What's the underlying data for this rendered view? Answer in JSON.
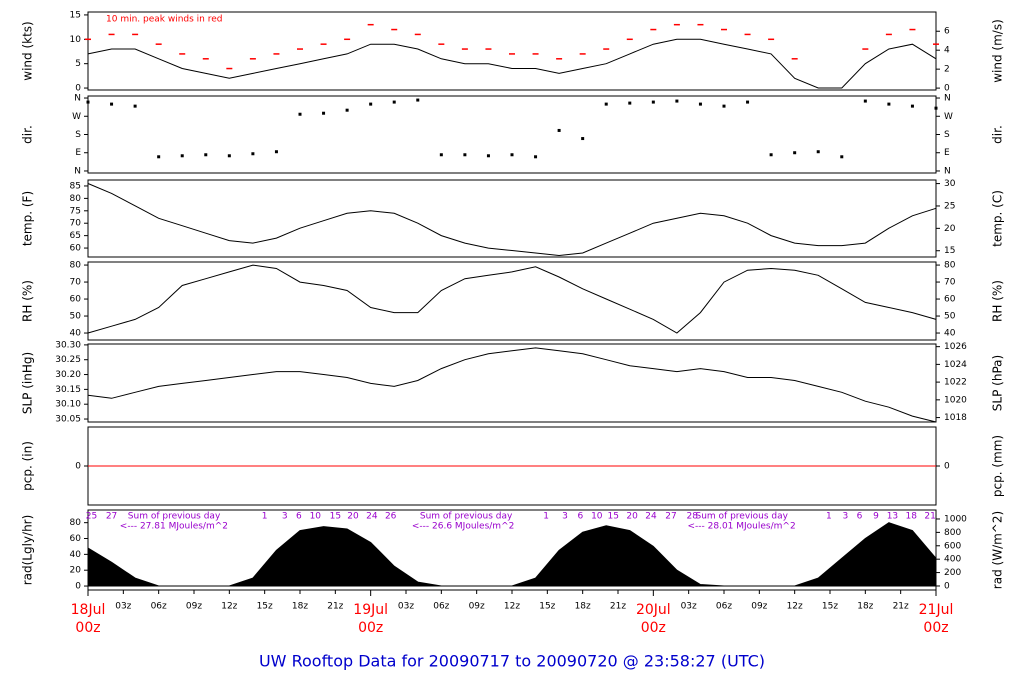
{
  "title": "UW Rooftop Data for 20090717  to  20090720 @ 23:58:27  (UTC)",
  "chart_data": [
    {
      "type": "line",
      "ylabel": "wind (kts)",
      "y2label": "wind (m/s)",
      "annotation": "10 min. peak winds in red",
      "xlim": [
        0,
        72
      ],
      "ylim": [
        -0.4,
        15.6
      ],
      "yticks": [
        0,
        5,
        10,
        15
      ],
      "y2lim": [
        -0.2,
        8.03
      ],
      "y2ticks": [
        0,
        2,
        4,
        6
      ],
      "x": [
        0,
        2,
        4,
        6,
        8,
        10,
        12,
        14,
        16,
        18,
        20,
        22,
        24,
        26,
        28,
        30,
        32,
        34,
        36,
        38,
        40,
        42,
        44,
        46,
        48,
        50,
        52,
        54,
        56,
        58,
        60,
        62,
        64,
        66,
        68,
        70,
        72
      ],
      "series": [
        {
          "color": "#000000",
          "values": [
            7,
            8,
            8,
            6,
            4,
            3,
            2,
            3,
            4,
            5,
            6,
            7,
            9,
            9,
            8,
            6,
            5,
            5,
            4,
            4,
            3,
            4,
            5,
            7,
            9,
            10,
            10,
            9,
            8,
            7,
            2,
            0,
            0,
            5,
            8,
            9,
            6
          ]
        },
        {
          "color": "#ff0000",
          "style": "points",
          "values": [
            10,
            11,
            11,
            9,
            7,
            6,
            4,
            6,
            7,
            8,
            9,
            10,
            13,
            12,
            11,
            9,
            8,
            8,
            7,
            7,
            6,
            7,
            8,
            10,
            12,
            13,
            13,
            12,
            11,
            10,
            6,
            null,
            null,
            8,
            11,
            12,
            9
          ]
        }
      ]
    },
    {
      "type": "scatter",
      "ylabel": "dir.",
      "y2label": "dir.",
      "xlim": [
        0,
        72
      ],
      "ylim": [
        -10,
        370
      ],
      "yticks": [
        {
          "value": 0,
          "label": "N"
        },
        {
          "value": 90,
          "label": "E"
        },
        {
          "value": 180,
          "label": "S"
        },
        {
          "value": 270,
          "label": "W"
        },
        {
          "value": 360,
          "label": "N"
        }
      ],
      "y2lim": [
        -10,
        370
      ],
      "y2ticks": [
        {
          "value": 0,
          "label": "N"
        },
        {
          "value": 90,
          "label": "E"
        },
        {
          "value": 180,
          "label": "S"
        },
        {
          "value": 270,
          "label": "W"
        },
        {
          "value": 360,
          "label": "N"
        }
      ],
      "x": [
        0,
        2,
        4,
        6,
        8,
        10,
        12,
        14,
        16,
        18,
        20,
        22,
        24,
        26,
        28,
        30,
        32,
        34,
        36,
        38,
        40,
        42,
        44,
        46,
        48,
        50,
        52,
        54,
        56,
        58,
        60,
        62,
        64,
        66,
        68,
        70,
        72
      ],
      "series": [
        {
          "color": "#000000",
          "values": [
            340,
            330,
            320,
            70,
            75,
            80,
            75,
            85,
            95,
            280,
            285,
            300,
            330,
            340,
            350,
            80,
            80,
            75,
            80,
            70,
            200,
            160,
            330,
            335,
            340,
            345,
            330,
            320,
            340,
            80,
            90,
            95,
            70,
            345,
            330,
            320,
            310
          ]
        }
      ]
    },
    {
      "type": "line",
      "ylabel": "temp. (F)",
      "y2label": "temp. (C)",
      "xlim": [
        0,
        72
      ],
      "ylim": [
        56.4,
        87.4
      ],
      "yticks": [
        60,
        65,
        70,
        75,
        80,
        85
      ],
      "y2lim": [
        13.6,
        30.8
      ],
      "y2ticks": [
        15,
        20,
        25,
        30
      ],
      "x": [
        0,
        2,
        4,
        6,
        8,
        10,
        12,
        14,
        16,
        18,
        20,
        22,
        24,
        26,
        28,
        30,
        32,
        34,
        36,
        38,
        40,
        42,
        44,
        46,
        48,
        50,
        52,
        54,
        56,
        58,
        60,
        62,
        64,
        66,
        68,
        70,
        72
      ],
      "series": [
        {
          "color": "#000000",
          "values": [
            86,
            82,
            77,
            72,
            69,
            66,
            63,
            62,
            64,
            68,
            71,
            74,
            75,
            74,
            70,
            65,
            62,
            60,
            59,
            58,
            57,
            58,
            62,
            66,
            70,
            72,
            74,
            73,
            70,
            65,
            62,
            61,
            61,
            62,
            68,
            73,
            76
          ]
        }
      ]
    },
    {
      "type": "line",
      "ylabel": "RH (%)",
      "y2label": "RH (%)",
      "xlim": [
        0,
        72
      ],
      "ylim": [
        35.9,
        81.8
      ],
      "yticks": [
        40,
        50,
        60,
        70,
        80
      ],
      "y2lim": [
        35.9,
        81.8
      ],
      "y2ticks": [
        40,
        50,
        60,
        70,
        80
      ],
      "x": [
        0,
        2,
        4,
        6,
        8,
        10,
        12,
        14,
        16,
        18,
        20,
        22,
        24,
        26,
        28,
        30,
        32,
        34,
        36,
        38,
        40,
        42,
        44,
        46,
        48,
        50,
        52,
        54,
        56,
        58,
        60,
        62,
        64,
        66,
        68,
        70,
        72
      ],
      "series": [
        {
          "color": "#000000",
          "values": [
            40,
            44,
            48,
            55,
            68,
            72,
            76,
            80,
            78,
            70,
            68,
            65,
            55,
            52,
            52,
            65,
            72,
            74,
            76,
            79,
            73,
            66,
            60,
            54,
            48,
            40,
            52,
            70,
            77,
            78,
            77,
            74,
            66,
            58,
            55,
            52,
            48
          ]
        }
      ]
    },
    {
      "type": "line",
      "ylabel": "SLP (inHg)",
      "y2label": "SLP (hPa)",
      "xlim": [
        0,
        72
      ],
      "ylim": [
        30.04,
        30.303
      ],
      "yticks": [
        30.05,
        {
          "value": 30.1,
          "label": "30.10"
        },
        30.15,
        {
          "value": 30.2,
          "label": "30.20"
        },
        30.25,
        {
          "value": 30.3,
          "label": "30.30"
        }
      ],
      "y2lim": [
        1017.5,
        1026.3
      ],
      "y2ticks": [
        1018,
        1020,
        1022,
        1024,
        1026
      ],
      "x": [
        0,
        2,
        4,
        6,
        8,
        10,
        12,
        14,
        16,
        18,
        20,
        22,
        24,
        26,
        28,
        30,
        32,
        34,
        36,
        38,
        40,
        42,
        44,
        46,
        48,
        50,
        52,
        54,
        56,
        58,
        60,
        62,
        64,
        66,
        68,
        70,
        72
      ],
      "series": [
        {
          "color": "#000000",
          "values": [
            30.13,
            30.12,
            30.14,
            30.16,
            30.17,
            30.18,
            30.19,
            30.2,
            30.21,
            30.21,
            30.2,
            30.19,
            30.17,
            30.16,
            30.18,
            30.22,
            30.25,
            30.27,
            30.28,
            30.29,
            30.28,
            30.27,
            30.25,
            30.23,
            30.22,
            30.21,
            30.22,
            30.21,
            30.19,
            30.19,
            30.18,
            30.16,
            30.14,
            30.11,
            30.09,
            30.06,
            30.04
          ]
        }
      ]
    },
    {
      "type": "line",
      "ylabel": "pcp. (in)",
      "y2label": "pcp. (mm)",
      "xlim": [
        0,
        72
      ],
      "ylim": [
        -1,
        1
      ],
      "yticks": [
        0
      ],
      "y2lim": [
        -1,
        1
      ],
      "y2ticks": [
        0
      ],
      "x": [
        0,
        72
      ],
      "series": [
        {
          "color": "#ff0000",
          "values": [
            0,
            0
          ]
        }
      ]
    },
    {
      "type": "area",
      "ylabel": "rad(Lgly/hr)",
      "y2label": "rad (W/m^2)",
      "xlim": [
        0,
        72
      ],
      "ylim": [
        -5,
        96
      ],
      "yticks": [
        0,
        20,
        40,
        60,
        80
      ],
      "y2lim": [
        -60,
        1134
      ],
      "y2ticks": [
        0,
        200,
        400,
        600,
        800,
        1000
      ],
      "x": [
        0,
        2,
        4,
        6,
        8,
        10,
        12,
        14,
        16,
        18,
        20,
        22,
        24,
        26,
        28,
        30,
        32,
        34,
        36,
        38,
        40,
        42,
        44,
        46,
        48,
        50,
        52,
        54,
        56,
        58,
        60,
        62,
        64,
        66,
        68,
        70,
        72
      ],
      "series": [
        {
          "color": "#000000",
          "values": [
            48,
            30,
            10,
            0,
            0,
            0,
            0,
            10,
            45,
            70,
            75,
            72,
            55,
            25,
            5,
            0,
            0,
            0,
            0,
            10,
            45,
            68,
            76,
            70,
            50,
            20,
            2,
            0,
            0,
            0,
            0,
            10,
            35,
            60,
            80,
            70,
            35
          ]
        }
      ],
      "label_color": "#9900cc",
      "hour_labels": [
        {
          "value": 0.3,
          "label": "25"
        },
        {
          "value": 2.0,
          "label": "27"
        },
        {
          "value": 15.0,
          "label": "1"
        },
        {
          "value": 16.7,
          "label": "3"
        },
        {
          "value": 17.9,
          "label": "6"
        },
        {
          "value": 19.3,
          "label": "10"
        },
        {
          "value": 21.0,
          "label": "15"
        },
        {
          "value": 22.5,
          "label": "20"
        },
        {
          "value": 24.1,
          "label": "24"
        },
        {
          "value": 25.7,
          "label": "26"
        },
        {
          "value": 38.9,
          "label": "1"
        },
        {
          "value": 40.5,
          "label": "3"
        },
        {
          "value": 41.8,
          "label": "6"
        },
        {
          "value": 43.2,
          "label": "10"
        },
        {
          "value": 44.6,
          "label": "15"
        },
        {
          "value": 46.2,
          "label": "20"
        },
        {
          "value": 47.8,
          "label": "24"
        },
        {
          "value": 49.5,
          "label": "27"
        },
        {
          "value": 51.3,
          "label": "28"
        },
        {
          "value": 62.9,
          "label": "1"
        },
        {
          "value": 64.3,
          "label": "3"
        },
        {
          "value": 65.5,
          "label": "6"
        },
        {
          "value": 66.9,
          "label": "9"
        },
        {
          "value": 68.3,
          "label": "13"
        },
        {
          "value": 69.9,
          "label": "18"
        },
        {
          "value": 71.5,
          "label": "21"
        }
      ],
      "daily_sums": [
        {
          "x": 2.7,
          "title": "Sum of previous day",
          "label": "<--- 27.81 MJoules/m^2"
        },
        {
          "x": 27.5,
          "title": "Sum of previous day",
          "label": "<--- 26.6 MJoules/m^2"
        },
        {
          "x": 50.9,
          "title": "Sum of previous day",
          "label": "<--- 28.01 MJoules/m^2"
        }
      ],
      "xticks": [
        {
          "value": 3,
          "label": "03z"
        },
        {
          "value": 6,
          "label": "06z"
        },
        {
          "value": 9,
          "label": "09z"
        },
        {
          "value": 12,
          "label": "12z"
        },
        {
          "value": 15,
          "label": "15z"
        },
        {
          "value": 18,
          "label": "18z"
        },
        {
          "value": 21,
          "label": "21z"
        },
        {
          "value": 27,
          "label": "03z"
        },
        {
          "value": 30,
          "label": "06z"
        },
        {
          "value": 33,
          "label": "09z"
        },
        {
          "value": 36,
          "label": "12z"
        },
        {
          "value": 39,
          "label": "15z"
        },
        {
          "value": 42,
          "label": "18z"
        },
        {
          "value": 45,
          "label": "21z"
        },
        {
          "value": 51,
          "label": "03z"
        },
        {
          "value": 54,
          "label": "06z"
        },
        {
          "value": 57,
          "label": "09z"
        },
        {
          "value": 60,
          "label": "12z"
        },
        {
          "value": 63,
          "label": "15z"
        },
        {
          "value": 66,
          "label": "18z"
        },
        {
          "value": 69,
          "label": "21z"
        }
      ],
      "day_ticks": [
        {
          "value": 0,
          "label": "18Jul",
          "sublabel": "00z"
        },
        {
          "value": 24,
          "label": "19Jul",
          "sublabel": "00z"
        },
        {
          "value": 48,
          "label": "20Jul",
          "sublabel": "00z"
        },
        {
          "value": 72,
          "label": "21Jul",
          "sublabel": "00z"
        }
      ]
    }
  ]
}
